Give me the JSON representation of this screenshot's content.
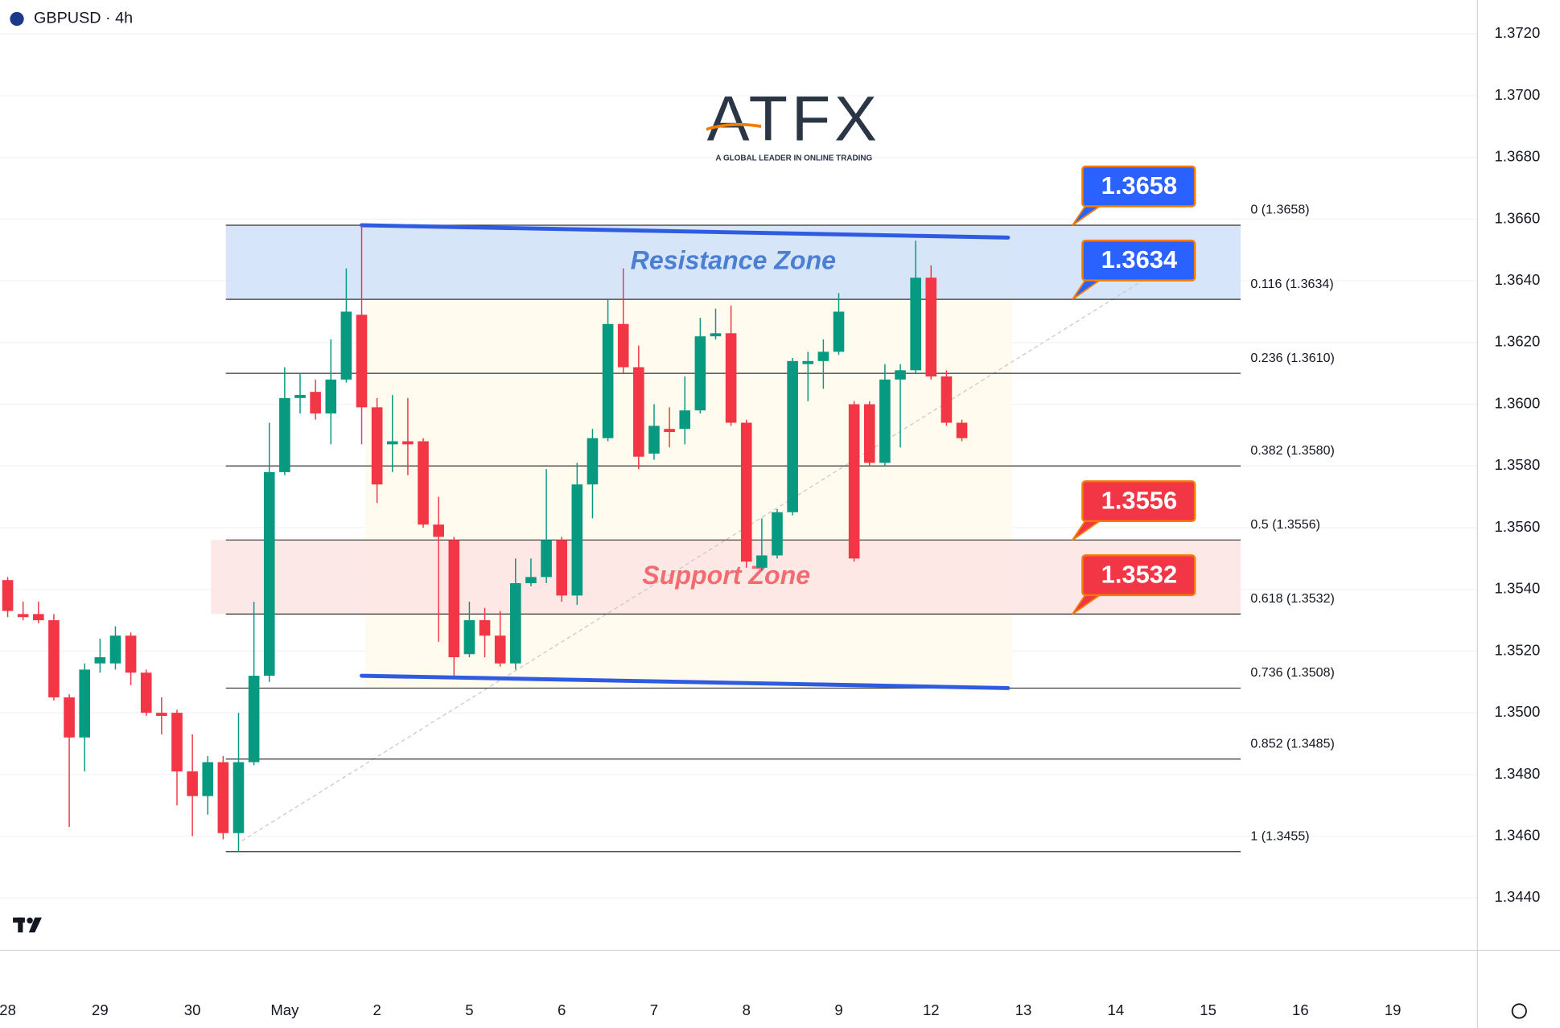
{
  "chart_data": {
    "type": "candlestick",
    "title": "GBPUSD · 4h",
    "categories": [
      "28",
      null,
      null,
      null,
      null,
      null,
      "29",
      null,
      null,
      null,
      null,
      null,
      "30",
      null,
      null,
      null,
      null,
      null,
      "May",
      null,
      null,
      null,
      null,
      null,
      "2",
      null,
      null,
      null,
      null,
      null,
      "5",
      null,
      null,
      null,
      null,
      null,
      "6",
      null,
      null,
      null,
      null,
      null,
      "7",
      null,
      null,
      null,
      null,
      null,
      "8",
      null,
      null,
      null,
      null,
      null,
      "9",
      null,
      null,
      null,
      null,
      null,
      "12",
      null,
      null,
      null,
      null,
      null,
      "13",
      null,
      null,
      null,
      null,
      null,
      "14",
      null,
      null,
      null,
      null,
      null,
      "15",
      null,
      null,
      null,
      null,
      null,
      "16",
      null,
      null,
      null,
      null,
      null,
      "19",
      null,
      null,
      null,
      null,
      null
    ],
    "open": [
      1.3543,
      1.3532,
      1.3532,
      1.353,
      1.3505,
      1.3492,
      1.3516,
      1.3516,
      1.3525,
      1.3513,
      1.35,
      1.35,
      1.3481,
      1.3473,
      1.3484,
      1.3461,
      1.3484,
      1.3512,
      1.3578,
      1.3602,
      1.3604,
      1.3597,
      1.3608,
      1.3629,
      1.3599,
      1.3587,
      1.3588,
      1.3588,
      1.3561,
      1.3556,
      1.3519,
      1.353,
      1.3525,
      1.3516,
      1.3542,
      1.3544,
      1.3556,
      1.3538,
      1.3574,
      1.3589,
      1.3626,
      1.3612,
      1.3584,
      1.3592,
      1.3592,
      1.3598,
      1.3622,
      1.3623,
      1.3594,
      1.3547,
      1.3551,
      1.3565,
      1.3613,
      1.3614,
      1.3617,
      1.36,
      1.36,
      1.3581,
      1.3608,
      1.3611,
      1.3641,
      1.3609,
      1.3594,
      null,
      null,
      null,
      null,
      null,
      null,
      null,
      null,
      null,
      null,
      null,
      null,
      null,
      null,
      null,
      null,
      null,
      null,
      null,
      null,
      null,
      null,
      null,
      null,
      null,
      null,
      null,
      null,
      null,
      null,
      null,
      null,
      null
    ],
    "high": [
      1.3544,
      1.3536,
      1.3536,
      1.3532,
      1.3506,
      1.3516,
      1.3524,
      1.3528,
      1.3526,
      1.3514,
      1.3505,
      1.3501,
      1.3493,
      1.3486,
      1.3486,
      1.35,
      1.3536,
      1.3594,
      1.3612,
      1.361,
      1.3608,
      1.3621,
      1.3644,
      1.3658,
      1.3602,
      1.3603,
      1.3602,
      1.3589,
      1.357,
      1.3557,
      1.3536,
      1.3534,
      1.3533,
      1.355,
      1.355,
      1.3579,
      1.3557,
      1.3581,
      1.3592,
      1.3634,
      1.3644,
      1.3619,
      1.36,
      1.3599,
      1.3609,
      1.3628,
      1.3631,
      1.3632,
      1.3595,
      1.3563,
      1.3566,
      1.3615,
      1.3617,
      1.3621,
      1.3636,
      1.3601,
      1.3601,
      1.3613,
      1.3613,
      1.3653,
      1.3645,
      1.3611,
      1.3595,
      null,
      null,
      null,
      null,
      null,
      null,
      null,
      null,
      null,
      null,
      null,
      null,
      null,
      null,
      null,
      null,
      null,
      null,
      null,
      null,
      null,
      null,
      null,
      null,
      null,
      null,
      null,
      null,
      null,
      null,
      null,
      null,
      null
    ],
    "low": [
      1.3531,
      1.353,
      1.3529,
      1.3504,
      1.3463,
      1.3481,
      1.3513,
      1.3514,
      1.3509,
      1.3499,
      1.3493,
      1.347,
      1.346,
      1.3467,
      1.3459,
      1.3455,
      1.3483,
      1.351,
      1.3577,
      1.3597,
      1.3595,
      1.3587,
      1.3607,
      1.3587,
      1.3568,
      1.3578,
      1.3577,
      1.356,
      1.3523,
      1.3512,
      1.3518,
      1.3518,
      1.3515,
      1.3514,
      1.3541,
      1.3542,
      1.3536,
      1.3535,
      1.3563,
      1.3588,
      1.361,
      1.3579,
      1.3582,
      1.3586,
      1.3587,
      1.3597,
      1.3621,
      1.3593,
      1.3547,
      1.3546,
      1.355,
      1.3564,
      1.3601,
      1.3605,
      1.3616,
      1.3549,
      1.358,
      1.358,
      1.3586,
      1.361,
      1.3608,
      1.3593,
      1.3588,
      null,
      null,
      null,
      null,
      null,
      null,
      null,
      null,
      null,
      null,
      null,
      null,
      null,
      null,
      null,
      null,
      null,
      null,
      null,
      null,
      null,
      null,
      null,
      null,
      null,
      null,
      null,
      null,
      null,
      null,
      null,
      null,
      null
    ],
    "close": [
      1.3533,
      1.3531,
      1.353,
      1.3505,
      1.3492,
      1.3514,
      1.3518,
      1.3525,
      1.3513,
      1.35,
      1.3499,
      1.3481,
      1.3473,
      1.3484,
      1.3461,
      1.3484,
      1.3512,
      1.3578,
      1.3602,
      1.3603,
      1.3597,
      1.3608,
      1.363,
      1.3599,
      1.3574,
      1.3588,
      1.3587,
      1.3561,
      1.3557,
      1.3518,
      1.353,
      1.3525,
      1.3516,
      1.3542,
      1.3544,
      1.3556,
      1.3538,
      1.3574,
      1.3589,
      1.3626,
      1.3612,
      1.3583,
      1.3593,
      1.3591,
      1.3598,
      1.3622,
      1.3623,
      1.3594,
      1.3549,
      1.3551,
      1.3565,
      1.3614,
      1.3614,
      1.3617,
      1.363,
      1.355,
      1.3581,
      1.3608,
      1.3611,
      1.3641,
      1.3609,
      1.3594,
      1.3589,
      null,
      null,
      null,
      null,
      null,
      null,
      null,
      null,
      null,
      null,
      null,
      null,
      null,
      null,
      null,
      null,
      null,
      null,
      null,
      null,
      null,
      null,
      null,
      null,
      null,
      null,
      null,
      null,
      null,
      null,
      null,
      null,
      null
    ],
    "up_color": "#089981",
    "down_color": "#f23645",
    "ylim": [
      1.3423,
      1.3731
    ],
    "yticks": [
      {
        "value": 1.344,
        "label": "1.3440"
      },
      {
        "value": 1.346,
        "label": "1.3460"
      },
      {
        "value": 1.348,
        "label": "1.3480"
      },
      {
        "value": 1.35,
        "label": "1.3500"
      },
      {
        "value": 1.352,
        "label": "1.3520"
      },
      {
        "value": 1.354,
        "label": "1.3540"
      },
      {
        "value": 1.356,
        "label": "1.3560"
      },
      {
        "value": 1.358,
        "label": "1.3580"
      },
      {
        "value": 1.36,
        "label": "1.3600"
      },
      {
        "value": 1.362,
        "label": "1.3620"
      },
      {
        "value": 1.364,
        "label": "1.3640"
      },
      {
        "value": 1.366,
        "label": "1.3660"
      },
      {
        "value": 1.368,
        "label": "1.3680"
      },
      {
        "value": 1.37,
        "label": "1.3700"
      },
      {
        "value": 1.372,
        "label": "1.3720"
      }
    ],
    "grid": true,
    "fib_levels": [
      {
        "label": "0 (1.3658)",
        "value": 1.3658
      },
      {
        "label": "0.116 (1.3634)",
        "value": 1.3634
      },
      {
        "label": "0.236 (1.3610)",
        "value": 1.361
      },
      {
        "label": "0.382 (1.3580)",
        "value": 1.358
      },
      {
        "label": "0.5 (1.3556)",
        "value": 1.3556
      },
      {
        "label": "0.618 (1.3532)",
        "value": 1.3532
      },
      {
        "label": "0.736 (1.3508)",
        "value": 1.3508
      },
      {
        "label": "0.852 (1.3485)",
        "value": 1.3485
      },
      {
        "label": "1 (1.3455)",
        "value": 1.3455
      }
    ],
    "zones": [
      {
        "label": "Resistance Zone",
        "low": 1.3634,
        "high": 1.3658,
        "color": "#cfe0f8",
        "text_color": "#4a7fd4"
      },
      {
        "label": "Support Zone",
        "low": 1.3532,
        "high": 1.3556,
        "color": "#fde4e4",
        "text_color": "#f26b70"
      }
    ],
    "callouts": [
      {
        "label": "1.3658",
        "value": 1.3658,
        "color": "#2962ff"
      },
      {
        "label": "1.3634",
        "value": 1.3634,
        "color": "#2962ff"
      },
      {
        "label": "1.3556",
        "value": 1.3556,
        "color": "#f23645"
      },
      {
        "label": "1.3532",
        "value": 1.3532,
        "color": "#f23645"
      }
    ],
    "trendlines": [
      {
        "x": [
          23,
          65
        ],
        "y": [
          1.3658,
          1.3654
        ],
        "color": "#2f5be0"
      },
      {
        "x": [
          23,
          65
        ],
        "y": [
          1.3512,
          1.3508
        ],
        "color": "#2f5be0"
      }
    ],
    "watermark": {
      "title": "ATFX",
      "tagline": "A GLOBAL LEADER IN ONLINE TRADING"
    }
  }
}
